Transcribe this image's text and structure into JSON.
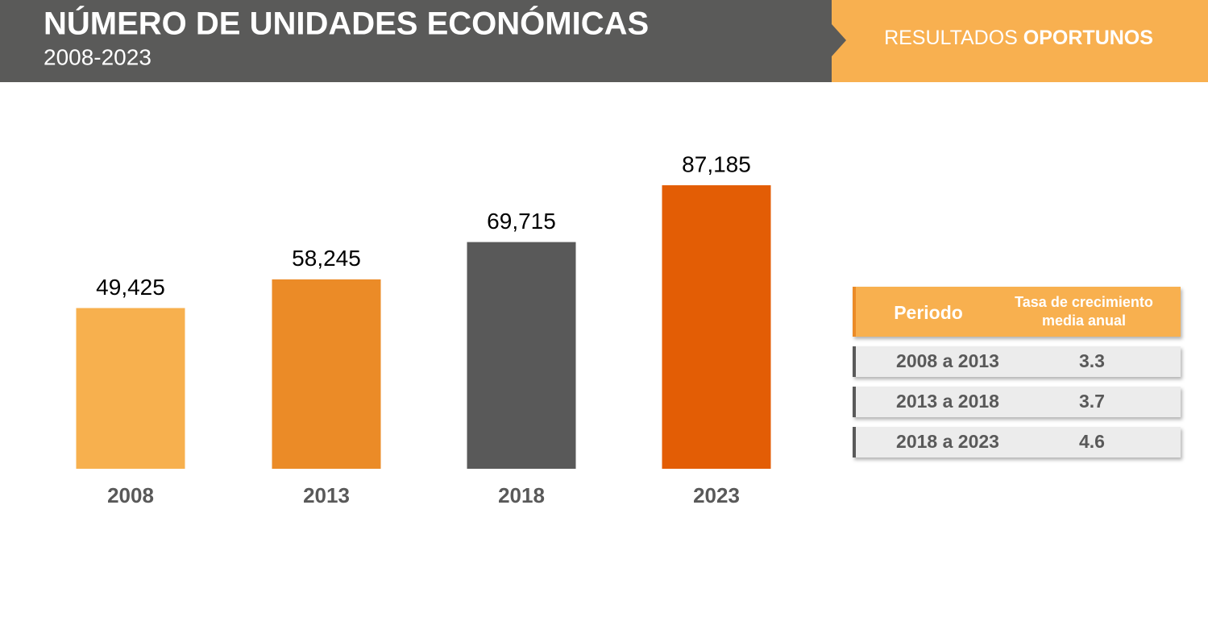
{
  "header": {
    "title": "NÚMERO DE UNIDADES ECONÓMICAS",
    "subtitle": "2008-2023",
    "tag": "RESULTADOS",
    "tag_bold": "OPORTUNOS"
  },
  "chart_data": {
    "type": "bar",
    "categories": [
      "2008",
      "2013",
      "2018",
      "2023"
    ],
    "values": [
      49425,
      58245,
      69715,
      87185
    ],
    "value_labels": [
      "49,425",
      "58,245",
      "69,715",
      "87,185"
    ],
    "colors": [
      "#f7b04e",
      "#eb8b27",
      "#595959",
      "#e35d05"
    ]
  },
  "table": {
    "header": [
      "Periodo",
      "Tasa de crecimiento media anual"
    ],
    "rows": [
      [
        "2008 a 2013",
        "3.3"
      ],
      [
        "2013 a 2018",
        "3.7"
      ],
      [
        "2018 a 2023",
        "4.6"
      ]
    ]
  }
}
